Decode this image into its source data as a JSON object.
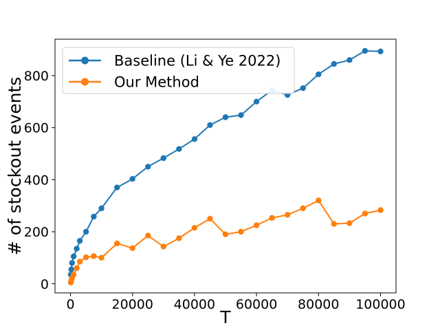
{
  "figure": {
    "background": "#ffffff",
    "frame_color": "#000000"
  },
  "chart_data": {
    "type": "line",
    "title": "",
    "xlabel": "T",
    "ylabel": "# of stockout events",
    "xlim": [
      -5000,
      105000
    ],
    "ylim": [
      -35,
      940
    ],
    "x_ticks": [
      0,
      20000,
      40000,
      60000,
      80000,
      100000
    ],
    "y_ticks": [
      0,
      200,
      400,
      600,
      800
    ],
    "grid": false,
    "legend_position": "upper left",
    "x": [
      100,
      250,
      500,
      1000,
      2000,
      3000,
      5000,
      7500,
      10000,
      15000,
      20000,
      25000,
      30000,
      35000,
      40000,
      45000,
      50000,
      55000,
      60000,
      65000,
      70000,
      75000,
      80000,
      85000,
      90000,
      95000,
      100000
    ],
    "series": [
      {
        "name": "Baseline (Li & Ye 2022)",
        "color": "#1f77b4",
        "marker": "circle",
        "values": [
          35,
          55,
          80,
          105,
          135,
          165,
          200,
          258,
          290,
          370,
          403,
          450,
          483,
          518,
          556,
          610,
          640,
          648,
          700,
          744,
          726,
          752,
          805,
          845,
          860,
          895,
          893
        ]
      },
      {
        "name": "Our Method",
        "color": "#ff7f0e",
        "marker": "circle",
        "values": [
          5,
          12,
          22,
          35,
          60,
          85,
          102,
          106,
          100,
          155,
          137,
          185,
          143,
          175,
          215,
          250,
          190,
          200,
          225,
          253,
          265,
          290,
          320,
          230,
          233,
          270,
          283
        ]
      }
    ]
  }
}
